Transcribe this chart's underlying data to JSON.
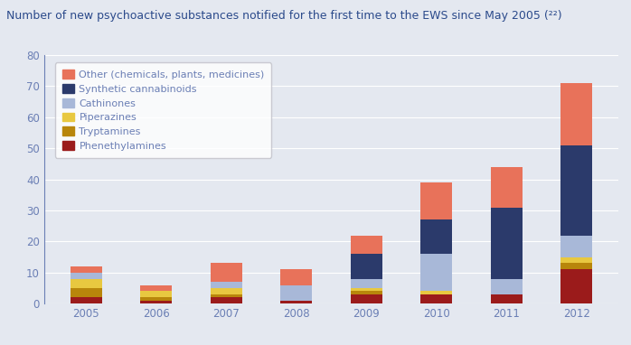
{
  "years": [
    "2005",
    "2006",
    "2007",
    "2008",
    "2009",
    "2010",
    "2011",
    "2012"
  ],
  "categories": [
    "Phenethylamines",
    "Tryptamines",
    "Piperazines",
    "Cathinones",
    "Synthetic cannabinoids",
    "Other (chemicals, plants, medicines)"
  ],
  "colors": [
    "#9b1b1b",
    "#b8860b",
    "#e8c840",
    "#a8b8d8",
    "#2b3a6b",
    "#e8725a"
  ],
  "data": {
    "Phenethylamines": [
      2,
      1,
      2,
      1,
      3,
      3,
      3,
      11
    ],
    "Tryptamines": [
      3,
      1,
      1,
      0,
      1,
      0,
      0,
      2
    ],
    "Piperazines": [
      3,
      2,
      2,
      0,
      1,
      1,
      0,
      2
    ],
    "Cathinones": [
      2,
      0,
      2,
      5,
      3,
      12,
      5,
      7
    ],
    "Synthetic cannabinoids": [
      0,
      0,
      0,
      0,
      8,
      11,
      23,
      29
    ],
    "Other (chemicals, plants, medicines)": [
      2,
      2,
      6,
      5,
      6,
      12,
      13,
      20
    ]
  },
  "title": "Number of new psychoactive substances notified for the first time to the EWS since May 2005 (²²)",
  "ylim": [
    0,
    80
  ],
  "yticks": [
    0,
    10,
    20,
    30,
    40,
    50,
    60,
    70,
    80
  ],
  "bg_color": "#e4e8f0",
  "plot_bg_color": "#e4e8f0",
  "title_color": "#2b4a8b",
  "axis_color": "#6b7fb5",
  "grid_color": "#ffffff",
  "legend_fontsize": 8.0,
  "title_fontsize": 9.0,
  "bar_width": 0.45
}
